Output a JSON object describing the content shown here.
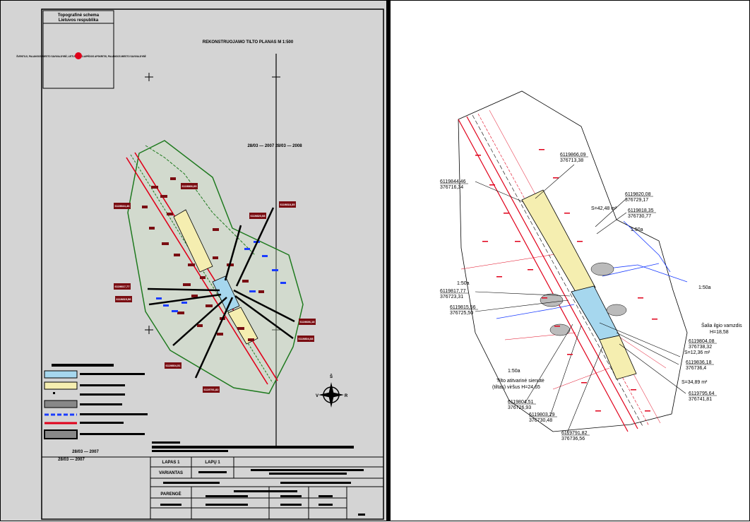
{
  "left_sheet": {
    "inset_title": [
      "Topografinė schema",
      "Lietuvos respublika"
    ],
    "inset_line_text": "ŠVENTOJI, PALANGOS MIESTO SAVIVALDYBĖ, LIETUVA — KLAIPĖDOS APSKRITIS, PALANGOS MIESTO SAVIVALDYBĖ",
    "plan_title": "REKONSTRUOJAMO TILTO PLANAS M 1:500",
    "axis_label": "28/03 — 2007   28/03 — 2008",
    "date_lines": [
      "28/03 — 2007",
      "28/03 — 2007"
    ],
    "title_block": {
      "sheet_label": "LAPAS 1",
      "sheets_label": "LAPŲ 1",
      "stage_label": "VARIANTAS",
      "designed_label": "PARENGĖ"
    },
    "plan_labels": [
      "6119866,09",
      "6119844,46",
      "6119820,08",
      "6119818,35",
      "6119817,77",
      "6119815,56",
      "6119804,51",
      "6119803,29",
      "6119791,82",
      "6119795,64",
      "6119836,18",
      "6119804,08"
    ],
    "north_arrow_label": "Š",
    "compass_letters": [
      "V",
      "R"
    ]
  },
  "right_sheet": {
    "coordinates": [
      {
        "id": "p1",
        "north": "6119866,09",
        "east": "376713,38"
      },
      {
        "id": "p2",
        "north": "6119844,46",
        "east": "376716,34"
      },
      {
        "id": "p3",
        "north": "6119820,08",
        "east": "376729,17"
      },
      {
        "id": "p4",
        "north": "6119818,35",
        "east": "376730,77"
      },
      {
        "id": "p5",
        "north": "6119817,77",
        "east": "376723,31"
      },
      {
        "id": "p6",
        "north": "6119815,56",
        "east": "376725,50"
      },
      {
        "id": "p7",
        "north": "6119804,08",
        "east": "376738,32"
      },
      {
        "id": "p8",
        "north": "6119836,18",
        "east": "376736,4"
      },
      {
        "id": "p9",
        "north": "6119795,64",
        "east": "376741,81"
      },
      {
        "id": "p10",
        "north": "6119804,51",
        "east": "376726,93"
      },
      {
        "id": "p11",
        "north": "6119803,29",
        "east": "376730,48"
      },
      {
        "id": "p12",
        "north": "6119791,82",
        "east": "376736,56"
      }
    ],
    "labels": {
      "dim_a": "1:50a",
      "dim_b": "1:50a",
      "dim_c": "1:50a",
      "dim_d": "1:50a",
      "area_label": "S=34,89 m²",
      "area_small": "S=12,36 m²",
      "span_label": "S=42,48 m²",
      "channel_title": "Šalia ilgio vamzdis",
      "channel_value": "H=18,58",
      "pipe_note_1": "Tilto atitvarinė sienutė",
      "pipe_note_2": "(tiltas) viršus H=24,65"
    }
  },
  "colors": {
    "sheet_bg": "#d4d4d4",
    "bridge_yellow": "#f5eeb0",
    "bridge_blue": "#a6d7ee",
    "road_red": "#e0001a",
    "contour_green": "#1f7a1f",
    "blue_utility": "#1a3cff",
    "dark_red": "#7a0d12"
  }
}
